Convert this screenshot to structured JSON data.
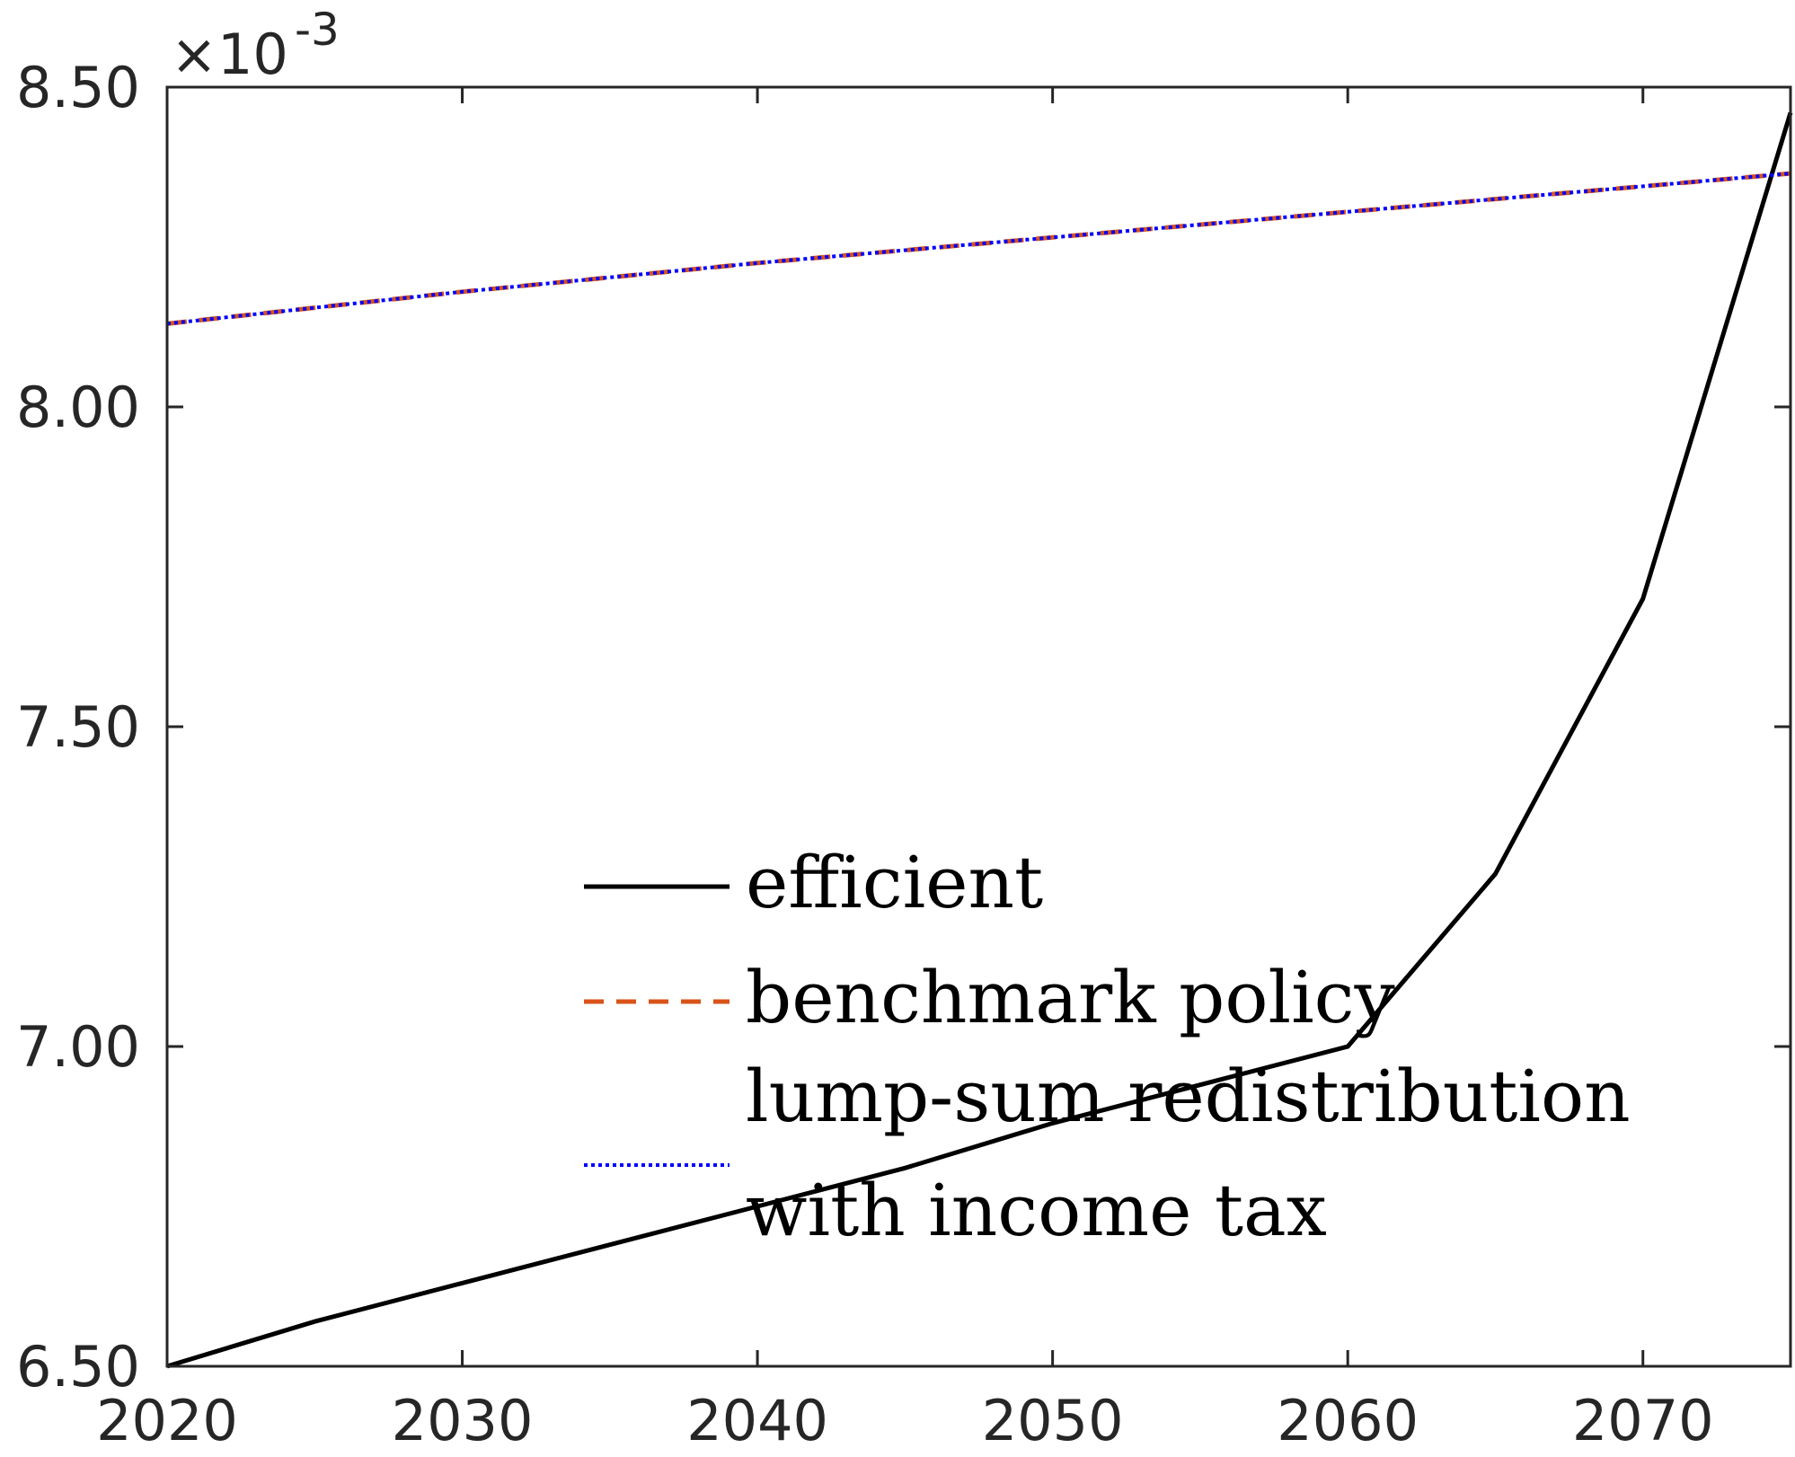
{
  "chart_data": {
    "type": "line",
    "title": "",
    "xlabel": "",
    "ylabel": "",
    "xlim": [
      2020,
      2075
    ],
    "ylim": [
      6.5,
      8.5
    ],
    "y_exponent_label": "×10",
    "y_exponent_power": "-3",
    "xticks": [
      2020,
      2030,
      2040,
      2050,
      2060,
      2070
    ],
    "xtick_labels": [
      "2020",
      "2030",
      "2040",
      "2050",
      "2060",
      "2070"
    ],
    "yticks": [
      6.5,
      7.0,
      7.5,
      8.0,
      8.5
    ],
    "ytick_labels": [
      "6.50",
      "7.00",
      "7.50",
      "8.00",
      "8.50"
    ],
    "grid": false,
    "legend_position": "lower-center",
    "series": [
      {
        "name": "efficient",
        "color": "#000000",
        "style": "solid",
        "x": [
          2020,
          2025,
          2030,
          2035,
          2040,
          2045,
          2050,
          2055,
          2060,
          2065,
          2070,
          2075
        ],
        "y": [
          6.5,
          6.57,
          6.63,
          6.69,
          6.75,
          6.81,
          6.88,
          6.94,
          7.0,
          7.27,
          7.7,
          8.46
        ]
      },
      {
        "name": "benchmark policy",
        "color": "#D95319",
        "style": "dashed",
        "x": [
          2020,
          2030,
          2040,
          2050,
          2060,
          2070,
          2075
        ],
        "y": [
          8.13,
          8.18,
          8.225,
          8.265,
          8.305,
          8.345,
          8.365
        ]
      },
      {
        "name": "lump-sum redistribution with income tax",
        "legend_lines": [
          "lump-sum redistribution",
          "with income tax"
        ],
        "color": "#0000FF",
        "style": "dotted",
        "x": [
          2020,
          2030,
          2040,
          2050,
          2060,
          2070,
          2075
        ],
        "y": [
          8.13,
          8.18,
          8.225,
          8.265,
          8.305,
          8.345,
          8.365
        ]
      }
    ]
  }
}
